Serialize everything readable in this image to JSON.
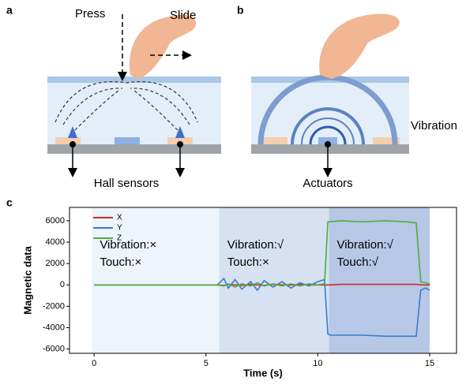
{
  "diagrams": {
    "a": {
      "label": "a",
      "press": "Press",
      "slide": "Slide",
      "sensors": "Hall sensors"
    },
    "b": {
      "label": "b",
      "vibration": "Vibration",
      "actuators": "Actuators"
    },
    "c": {
      "label": "c"
    }
  },
  "chart_data": {
    "type": "line",
    "xlabel": "Time (s)",
    "ylabel": "Magnetic data",
    "xlim": [
      -1.1,
      16.2
    ],
    "ylim": [
      -6400,
      7250
    ],
    "xticks": [
      0,
      5,
      10,
      15
    ],
    "yticks": [
      -6000,
      -4000,
      -2000,
      0,
      2000,
      4000,
      6000
    ],
    "legend": "upper left",
    "regions": [
      {
        "x": [
          -0.1,
          5.6
        ],
        "color": "#eef4fb",
        "texts": [
          "Vibration:×",
          "Touch:×"
        ]
      },
      {
        "x": [
          5.6,
          10.5
        ],
        "color": "#d6e1f1",
        "texts": [
          "Vibration:√",
          "Touch:×"
        ]
      },
      {
        "x": [
          10.5,
          15
        ],
        "color": "#b6c8e6",
        "texts": [
          "Vibration:√",
          "Touch:√"
        ]
      }
    ],
    "x": [
      0,
      1,
      2,
      3,
      4,
      5,
      5.5,
      5.8,
      6,
      6.3,
      6.6,
      7,
      7.3,
      7.6,
      8,
      8.4,
      8.8,
      9.2,
      9.6,
      10,
      10.3,
      10.45,
      10.55,
      11,
      12,
      13,
      14,
      14.4,
      14.6,
      14.8,
      15
    ],
    "series": [
      {
        "name": "X",
        "color": "#d62728",
        "values": [
          0,
          0,
          0,
          0,
          0,
          0,
          0,
          -50,
          50,
          0,
          -50,
          50,
          0,
          -50,
          50,
          0,
          0,
          50,
          0,
          0,
          0,
          0,
          0,
          50,
          50,
          50,
          50,
          50,
          0,
          0,
          0
        ]
      },
      {
        "name": "Y",
        "color": "#3a7dc9",
        "values": [
          0,
          0,
          0,
          0,
          0,
          0,
          0,
          600,
          -300,
          500,
          -400,
          300,
          -500,
          400,
          -200,
          300,
          -300,
          200,
          -100,
          300,
          500,
          -4600,
          -4700,
          -4700,
          -4700,
          -4800,
          -4800,
          -4800,
          -500,
          -300,
          -500
        ]
      },
      {
        "name": "Z",
        "color": "#4caf3c",
        "values": [
          0,
          0,
          0,
          0,
          0,
          0,
          0,
          -100,
          100,
          -200,
          100,
          -100,
          200,
          -100,
          100,
          -100,
          100,
          -100,
          100,
          0,
          100,
          5900,
          5900,
          6000,
          5900,
          6000,
          5900,
          5800,
          300,
          200,
          100
        ]
      }
    ]
  }
}
